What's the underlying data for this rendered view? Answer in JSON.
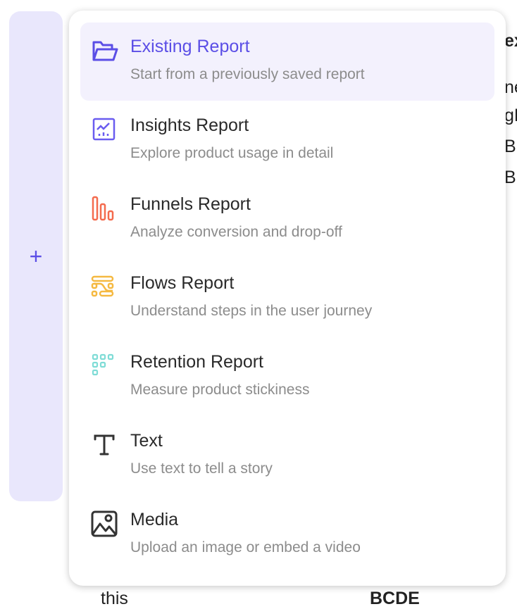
{
  "sidebar": {
    "add_icon": "plus-icon"
  },
  "background_fragments": {
    "right": [
      "ex",
      "ne",
      "gB",
      "B",
      "B"
    ],
    "bottom_left": "this",
    "bottom_right": "BCDE"
  },
  "colors": {
    "accent": "#5b4ee6",
    "funnels": "#f46b4e",
    "flows": "#f5b941",
    "retention": "#7fdcd6",
    "neutral": "#333333"
  },
  "menu": {
    "items": [
      {
        "title": "Existing Report",
        "subtitle": "Start from a previously saved report",
        "icon": "folder-open-icon",
        "active": true
      },
      {
        "title": "Insights Report",
        "subtitle": "Explore product usage in detail",
        "icon": "line-chart-icon"
      },
      {
        "title": "Funnels Report",
        "subtitle": "Analyze conversion and drop-off",
        "icon": "funnel-bars-icon"
      },
      {
        "title": "Flows Report",
        "subtitle": "Understand steps in the user journey",
        "icon": "flows-icon"
      },
      {
        "title": "Retention Report",
        "subtitle": "Measure product stickiness",
        "icon": "retention-grid-icon"
      },
      {
        "title": "Text",
        "subtitle": "Use text to tell a story",
        "icon": "text-icon"
      },
      {
        "title": "Media",
        "subtitle": "Upload an image or embed a video",
        "icon": "image-icon"
      }
    ]
  }
}
